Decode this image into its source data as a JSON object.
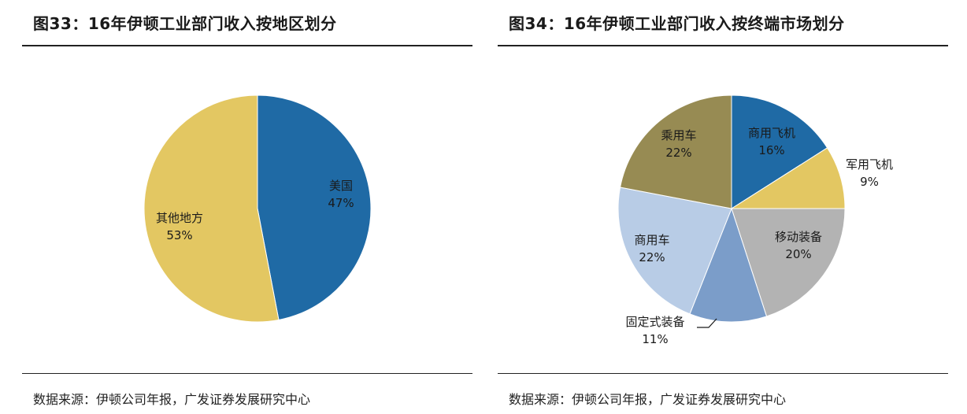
{
  "left": {
    "title": "图33：16年伊顿工业部门收入按地区划分",
    "source": "数据来源：伊顿公司年报，广发证券发展研究中心"
  },
  "right": {
    "title": "图34：16年伊顿工业部门收入按终端市场划分",
    "source": "数据来源：伊顿公司年报，广发证券发展研究中心"
  },
  "chart_data": [
    {
      "type": "pie",
      "title": "16年伊顿工业部门收入按地区划分",
      "slices": [
        {
          "label": "美国",
          "value": 47,
          "display": "47%",
          "color": "#1f6aa5"
        },
        {
          "label": "其他地方",
          "value": 53,
          "display": "53%",
          "color": "#e3c762"
        }
      ]
    },
    {
      "type": "pie",
      "title": "16年伊顿工业部门收入按终端市场划分",
      "slices": [
        {
          "label": "商用飞机",
          "value": 16,
          "display": "16%",
          "color": "#1f6aa5"
        },
        {
          "label": "军用飞机",
          "value": 9,
          "display": "9%",
          "color": "#e3c762"
        },
        {
          "label": "移动装备",
          "value": 20,
          "display": "20%",
          "color": "#b3b3b3"
        },
        {
          "label": "固定式装备",
          "value": 11,
          "display": "11%",
          "color": "#7b9dc9"
        },
        {
          "label": "商用车",
          "value": 22,
          "display": "22%",
          "color": "#b8cce6"
        },
        {
          "label": "乘用车",
          "value": 22,
          "display": "22%",
          "color": "#978b53"
        }
      ]
    }
  ]
}
